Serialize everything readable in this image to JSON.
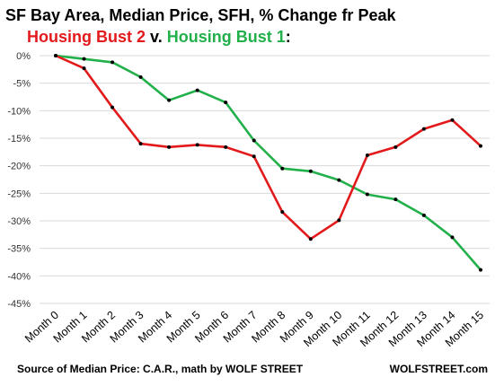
{
  "chart_data": {
    "type": "line",
    "title": "SF Bay Area, Median Price, SFH, % Change fr Peak",
    "subtitle_parts": [
      {
        "text": "Housing  Bust 2",
        "color": "#e31a1c"
      },
      {
        "text": " v. ",
        "color": "#000000"
      },
      {
        "text": "Housing  Bust 1",
        "color": "#22b04b"
      },
      {
        "text": ":",
        "color": "#000000"
      }
    ],
    "categories": [
      "Month 0",
      "Month 1",
      "Month 2",
      "Month 3",
      "Month 4",
      "Month 5",
      "Month 6",
      "Month 7",
      "Month 8",
      "Month 9",
      "Month 10",
      "Month 11",
      "Month 12",
      "Month 13",
      "Month 14",
      "Month 15"
    ],
    "series": [
      {
        "name": "Housing  Bust 2",
        "color": "#e31a1c",
        "values": [
          0,
          -2.3,
          -9.4,
          -16.0,
          -16.6,
          -16.2,
          -16.6,
          -18.3,
          -28.4,
          -33.3,
          -29.9,
          -18.1,
          -16.6,
          -13.3,
          -11.7,
          -16.4
        ]
      },
      {
        "name": "Housing  Bust 1",
        "color": "#22b04b",
        "values": [
          0,
          -0.6,
          -1.2,
          -3.9,
          -8.1,
          -6.3,
          -8.5,
          -15.4,
          -20.5,
          -21.0,
          -22.6,
          -25.2,
          -26.1,
          -29.0,
          -33.0,
          -38.9
        ]
      }
    ],
    "ylim": [
      -45,
      0
    ],
    "yticks": [
      "0%",
      "-5%",
      "-10%",
      "-15%",
      "-20%",
      "-25%",
      "-30%",
      "-35%",
      "-40%",
      "-45%"
    ],
    "ytick_values": [
      0,
      -5,
      -10,
      -15,
      -20,
      -25,
      -30,
      -35,
      -40,
      -45
    ],
    "grid": true,
    "gridline_color": "#d9d9d9",
    "marker_color": "#000000",
    "source": "Source of Median Price: C.A.R., math by WOLF STREET",
    "watermark": "WOLFSTREET.com"
  }
}
